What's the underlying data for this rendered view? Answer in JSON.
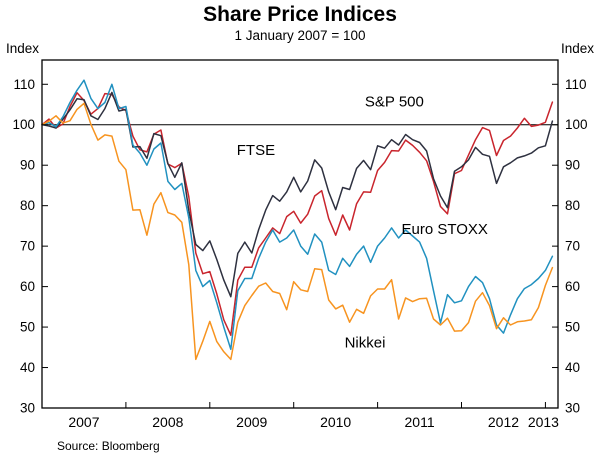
{
  "header": {
    "title": "Share Price Indices",
    "subtitle": "1 January 2007 = 100"
  },
  "footer": {
    "source": "Source: Bloomberg"
  },
  "chart_data": {
    "type": "line",
    "title": "Share Price Indices",
    "subtitle": "1 January 2007 = 100",
    "ylabel_left": "Index",
    "ylabel_right": "Index",
    "ylim": [
      30,
      116
    ],
    "yticks": [
      30,
      40,
      50,
      60,
      70,
      80,
      90,
      100,
      110
    ],
    "xlim": [
      2007.0,
      2013.15
    ],
    "xticks_years": [
      2007,
      2008,
      2009,
      2010,
      2011,
      2012,
      2013
    ],
    "reference_line": 100,
    "x_start": 2007.0,
    "points_per_year": 12,
    "grid": "off",
    "legend_position": "inline-labels",
    "source": "Source: Bloomberg",
    "series": [
      {
        "name": "S&P 500",
        "color": "#c9252d",
        "label": {
          "text": "S&P 500",
          "x": 2011.2,
          "y": 104.5
        },
        "values": [
          100,
          101.4,
          99.2,
          100.2,
          104.5,
          107.9,
          106,
          102.6,
          104,
          107.7,
          107.5,
          104.4,
          103.5,
          97.2,
          93.8,
          93.3,
          97.7,
          98.7,
          90.3,
          89.4,
          90.5,
          82.2,
          68.3,
          63.2,
          63.7,
          58.2,
          51.8,
          48,
          61.6,
          64.8,
          64.8,
          69.6,
          72,
          74.5,
          73.1,
          77.3,
          78.6,
          75.7,
          77.9,
          82.4,
          83.7,
          76.8,
          72.7,
          77.7,
          74,
          80.5,
          83.4,
          83.3,
          88.7,
          90.7,
          93.6,
          93.5,
          96.2,
          94.9,
          93.2,
          91.1,
          86,
          79.8,
          78,
          87.9,
          88.7,
          92.5,
          96.3,
          99.3,
          98.6,
          92.4,
          96.1,
          97.2,
          99.2,
          101.6,
          99.6,
          99.9,
          100.6,
          105.6
        ]
      },
      {
        "name": "FTSE",
        "color": "#2e3140",
        "label": {
          "text": "FTSE",
          "x": 2009.55,
          "y": 92.5
        },
        "values": [
          100,
          99.7,
          99.2,
          101.4,
          103.7,
          106.4,
          106.2,
          102.2,
          101.3,
          104,
          108,
          103.4,
          103.8,
          94.5,
          94.6,
          91.7,
          97.8,
          97.3,
          90.4,
          87,
          90.6,
          78.8,
          70.4,
          68.9,
          71.3,
          66.7,
          61.6,
          57.5,
          68.2,
          71,
          68.3,
          74.1,
          78.9,
          82.5,
          81.1,
          83.4,
          87,
          83.4,
          86.1,
          91.3,
          89.3,
          83.4,
          79,
          84.5,
          84,
          89.2,
          91.2,
          88.9,
          94.8,
          94.2,
          96.3,
          95,
          97.6,
          96.3,
          95.6,
          93.5,
          86.7,
          82.4,
          79.5,
          88.5,
          89.6,
          91.3,
          94.4,
          92.7,
          92.2,
          85.5,
          89.6,
          90.6,
          91.8,
          92.3,
          93,
          94.3,
          94.8,
          100.9
        ]
      },
      {
        "name": "Euro STOXX",
        "color": "#2191c0",
        "label": {
          "text": "Euro STOXX",
          "x": 2011.8,
          "y": 73
        },
        "values": [
          100,
          100.5,
          99.5,
          102,
          105.5,
          108.5,
          111,
          106.5,
          104,
          105.5,
          110,
          104,
          104.5,
          95,
          93,
          90,
          94,
          95.5,
          86,
          84,
          85.5,
          77,
          64,
          60,
          61.5,
          56,
          50,
          44.5,
          59,
          62,
          62,
          67,
          71,
          74,
          71,
          72,
          74,
          70,
          68,
          73,
          71,
          64,
          63,
          67,
          65,
          68,
          70,
          66,
          70,
          72,
          74.5,
          72,
          74,
          72.5,
          71,
          67,
          59,
          51,
          58,
          56,
          56.5,
          60,
          62.5,
          61,
          57,
          50.5,
          48.5,
          53,
          57,
          59.5,
          60.5,
          62,
          64,
          67.5
        ]
      },
      {
        "name": "Nikkei",
        "color": "#f79420",
        "label": {
          "text": "Nikkei",
          "x": 2010.85,
          "y": 45
        },
        "values": [
          100,
          100.9,
          102.2,
          100.4,
          101,
          103.8,
          105.3,
          100.1,
          96.2,
          97.5,
          97.2,
          91,
          88.9,
          78.9,
          79,
          72.7,
          80.4,
          83.2,
          78.3,
          77.7,
          75.9,
          65.4,
          42,
          46.5,
          51.4,
          46.4,
          43.9,
          42,
          51.2,
          55.3,
          57.8,
          60.1,
          60.9,
          58.8,
          58.3,
          54.3,
          61.2,
          59.2,
          58.8,
          64.4,
          64.2,
          56.7,
          54.5,
          55.4,
          51.2,
          54.4,
          53.4,
          57.7,
          59.4,
          59.4,
          61.7,
          52,
          57.2,
          56.3,
          57,
          57.1,
          52,
          50.5,
          52.2,
          49,
          49.1,
          51.1,
          56.4,
          58.5,
          55.3,
          49.6,
          52.3,
          50.5,
          51.3,
          51.5,
          51.8,
          54.8,
          60.3,
          64.7
        ]
      }
    ]
  }
}
